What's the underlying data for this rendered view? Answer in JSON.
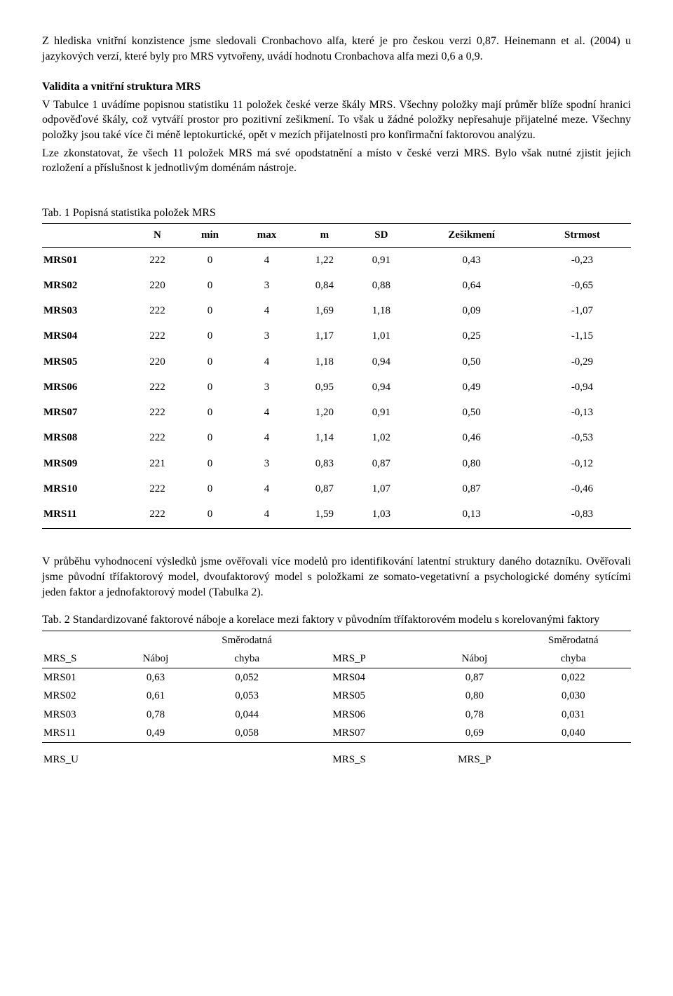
{
  "intro": {
    "p1": "Z hlediska vnitřní konzistence jsme sledovali Cronbachovo alfa, které je pro českou verzi 0,87. Heinemann et al. (2004) u jazykových verzí, které byly pro MRS vytvořeny, uvádí hodnotu Cronbachova alfa mezi 0,6 a 0,9."
  },
  "validita": {
    "heading": "Validita a vnitřní struktura MRS",
    "p1": "V Tabulce 1 uvádíme popisnou statistiku 11 položek české verze škály MRS. Všechny položky mají průměr blíže spodní hranici odpověďové škály, což vytváří prostor pro pozitivní zešikmení. To však u žádné položky nepřesahuje přijatelné meze. Všechny položky jsou také více či méně leptokurtické, opět v mezích přijatelnosti pro konfirmační faktorovou analýzu.",
    "p2": "Lze zkonstatovat, že všech 11 položek MRS má své opodstatnění a místo v české verzi MRS. Bylo však nutné zjistit jejich rozložení a příslušnost k jednotlivým doménám nástroje."
  },
  "tab1": {
    "caption": "Tab. 1 Popisná statistika položek MRS",
    "headers": [
      "",
      "N",
      "min",
      "max",
      "m",
      "SD",
      "Zešikmení",
      "Strmost"
    ],
    "rows": [
      [
        "MRS01",
        "222",
        "0",
        "4",
        "1,22",
        "0,91",
        "0,43",
        "-0,23"
      ],
      [
        "MRS02",
        "220",
        "0",
        "3",
        "0,84",
        "0,88",
        "0,64",
        "-0,65"
      ],
      [
        "MRS03",
        "222",
        "0",
        "4",
        "1,69",
        "1,18",
        "0,09",
        "-1,07"
      ],
      [
        "MRS04",
        "222",
        "0",
        "3",
        "1,17",
        "1,01",
        "0,25",
        "-1,15"
      ],
      [
        "MRS05",
        "220",
        "0",
        "4",
        "1,18",
        "0,94",
        "0,50",
        "-0,29"
      ],
      [
        "MRS06",
        "222",
        "0",
        "3",
        "0,95",
        "0,94",
        "0,49",
        "-0,94"
      ],
      [
        "MRS07",
        "222",
        "0",
        "4",
        "1,20",
        "0,91",
        "0,50",
        "-0,13"
      ],
      [
        "MRS08",
        "222",
        "0",
        "4",
        "1,14",
        "1,02",
        "0,46",
        "-0,53"
      ],
      [
        "MRS09",
        "221",
        "0",
        "3",
        "0,83",
        "0,87",
        "0,80",
        "-0,12"
      ],
      [
        "MRS10",
        "222",
        "0",
        "4",
        "0,87",
        "1,07",
        "0,87",
        "-0,46"
      ],
      [
        "MRS11",
        "222",
        "0",
        "4",
        "1,59",
        "1,03",
        "0,13",
        "-0,83"
      ]
    ]
  },
  "midpara": {
    "p1": "V průběhu vyhodnocení výsledků jsme ověřovali více modelů pro identifikování latentní struktury daného dotazníku. Ověřovali jsme původní třífaktorový model, dvoufaktorový model s položkami ze somato-vegetativní a psychologické domény sytícími jeden faktor a jednofaktorový model (Tabulka 2)."
  },
  "tab2": {
    "caption": "Tab. 2 Standardizované faktorové náboje a korelace mezi faktory v původním třífaktorovém modelu s korelovanými faktory",
    "headers": {
      "c1": "MRS_S",
      "c2": "Náboj",
      "c3a": "Směrodatná",
      "c3b": "chyba",
      "c4": "MRS_P",
      "c5": "Náboj",
      "c6a": "Směrodatná",
      "c6b": "chyba"
    },
    "rows": [
      [
        "MRS01",
        "0,63",
        "0,052",
        "MRS04",
        "0,87",
        "0,022"
      ],
      [
        "MRS02",
        "0,61",
        "0,053",
        "MRS05",
        "0,80",
        "0,030"
      ],
      [
        "MRS03",
        "0,78",
        "0,044",
        "MRS06",
        "0,78",
        "0,031"
      ],
      [
        "MRS11",
        "0,49",
        "0,058",
        "MRS07",
        "0,69",
        "0,040"
      ]
    ],
    "footer": {
      "c1": "MRS_U",
      "c4": "MRS_S",
      "c5": "MRS_P"
    }
  }
}
